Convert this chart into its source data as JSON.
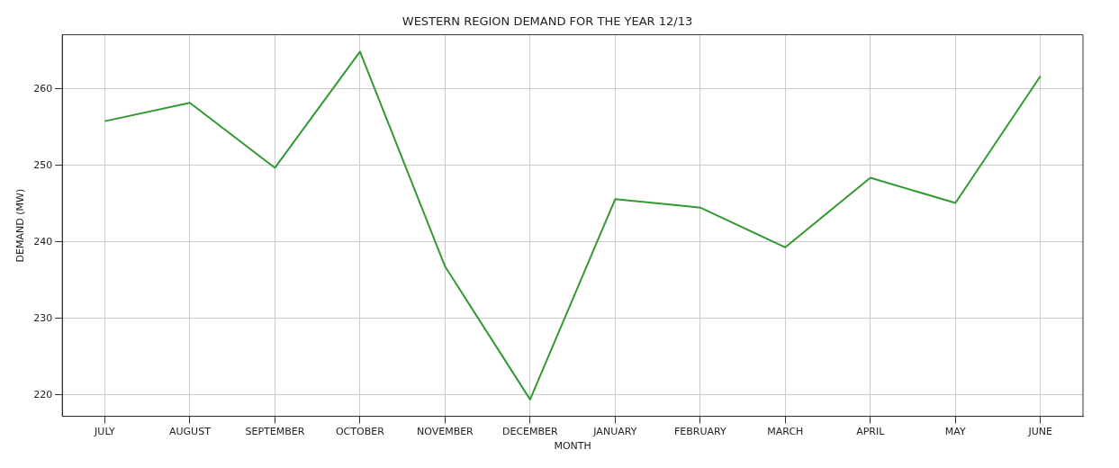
{
  "chart_data": {
    "type": "line",
    "title": "WESTERN REGION DEMAND FOR THE YEAR 12/13",
    "xlabel": "MONTH",
    "ylabel": "DEMAND (MW)",
    "categories": [
      "JULY",
      "AUGUST",
      "SEPTEMBER",
      "OCTOBER",
      "NOVEMBER",
      "DECEMBER",
      "JANUARY",
      "FEBRUARY",
      "MARCH",
      "APRIL",
      "MAY",
      "JUNE"
    ],
    "series": [
      {
        "color": "#339933",
        "values": [
          255.8,
          258.2,
          249.7,
          264.9,
          236.8,
          219.4,
          245.6,
          244.5,
          239.3,
          248.4,
          245.1,
          261.7
        ]
      }
    ],
    "ylim": [
      217.2,
      267.1
    ],
    "yticks": [
      220,
      230,
      240,
      250,
      260
    ],
    "grid": true,
    "legend": false
  }
}
